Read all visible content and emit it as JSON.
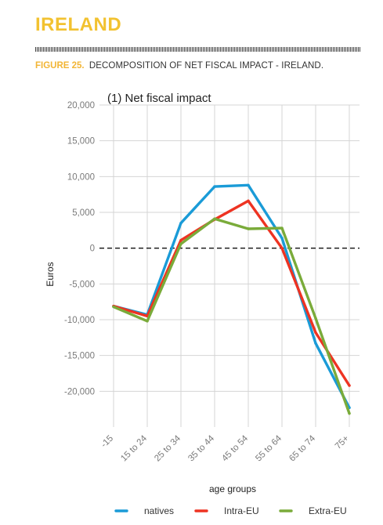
{
  "page": {
    "section_title": "IRELAND",
    "figure_number": "FIGURE 25.",
    "figure_caption": "DECOMPOSITION OF NET FISCAL IMPACT - IRELAND."
  },
  "chart_data": {
    "type": "line",
    "title": "(1) Net fiscal impact",
    "xlabel": "age groups",
    "ylabel": "Euros",
    "categories": [
      "-15",
      "15 to 24",
      "25 to 34",
      "35 to 44",
      "45 to 54",
      "55 to 64",
      "65 to 74",
      "75+"
    ],
    "ylim": [
      -25000,
      20000
    ],
    "yticks": [
      20000,
      15000,
      10000,
      5000,
      0,
      -5000,
      -10000,
      -15000,
      -20000
    ],
    "ytick_labels": [
      "20,000",
      "15,000",
      "10,000",
      "5,000",
      "0",
      "-5,000",
      "-10,000",
      "-15,000",
      "-20,000"
    ],
    "grid": true,
    "zero_line": "dashed",
    "legend_position": "bottom",
    "series": [
      {
        "name": "natives",
        "color": "#1a9bd7",
        "values": [
          -8100,
          -9300,
          3500,
          8600,
          8800,
          1400,
          -13300,
          -22300
        ]
      },
      {
        "name": "Intra-EU",
        "color": "#ee3322",
        "values": [
          -8100,
          -9500,
          1100,
          4000,
          6600,
          0,
          -11800,
          -19200
        ]
      },
      {
        "name": "Extra-EU",
        "color": "#7aab3a",
        "values": [
          -8200,
          -10200,
          600,
          4100,
          2700,
          2800,
          -9800,
          -23100
        ]
      }
    ]
  }
}
